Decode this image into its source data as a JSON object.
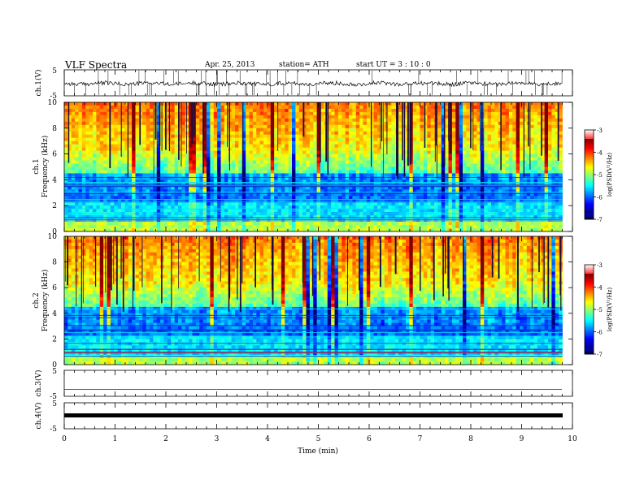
{
  "header": {
    "title": "VLF  Spectra",
    "date": "Apr. 25, 2013",
    "station": "station= ATH",
    "start": "start  UT  =   3  : 10 : 0"
  },
  "chart_data": [
    {
      "type": "line",
      "id": "ch1-waveform",
      "ylabel": "ch.1(V)",
      "ylim": [
        -5,
        5
      ],
      "y_ticks": [
        -5,
        5
      ],
      "xlim": [
        0,
        10
      ],
      "baseline": -0.3,
      "colors": {
        "line": "#000000"
      }
    },
    {
      "type": "heatmap",
      "id": "ch1-spectrogram",
      "ylabel_channel": "ch.1",
      "ylabel": "Frequency  (kHz)",
      "ylim": [
        0,
        10
      ],
      "y_ticks": [
        0,
        2,
        4,
        6,
        8,
        10
      ],
      "xlim": [
        0,
        9.8
      ],
      "colorbar": {
        "label": "log(PSD(V²/Hz)",
        "range": [
          -7,
          -3
        ],
        "ticks": [
          -3,
          -4,
          -5,
          -6,
          -7
        ]
      }
    },
    {
      "type": "heatmap",
      "id": "ch2-spectrogram",
      "ylabel_channel": "ch.2",
      "ylabel": "Frequency  (kHz)",
      "ylim": [
        0,
        10
      ],
      "y_ticks": [
        0,
        2,
        4,
        6,
        8,
        10
      ],
      "xlim": [
        0,
        9.8
      ],
      "colorbar": {
        "label": "log(PSD(V²/Hz)",
        "range": [
          -7,
          -3
        ],
        "ticks": [
          -3,
          -4,
          -5,
          -6,
          -7
        ]
      }
    },
    {
      "type": "line",
      "id": "ch3-waveform",
      "ylabel": "ch.3(V)",
      "ylim": [
        -5,
        5
      ],
      "y_ticks": [
        -5,
        5
      ],
      "xlim": [
        0,
        10
      ],
      "baseline": -0.5
    },
    {
      "type": "line",
      "id": "ch4-waveform",
      "ylabel": "ch.4(V)",
      "ylim": [
        -5,
        5
      ],
      "y_ticks": [
        -5,
        5
      ],
      "xlim": [
        0,
        10
      ],
      "baseline": 0
    }
  ],
  "x_axis": {
    "label": "Time  (min)",
    "ticks": [
      "0",
      "1",
      "2",
      "3",
      "4",
      "5",
      "6",
      "7",
      "8",
      "9",
      "10"
    ],
    "range": [
      0,
      10
    ]
  }
}
